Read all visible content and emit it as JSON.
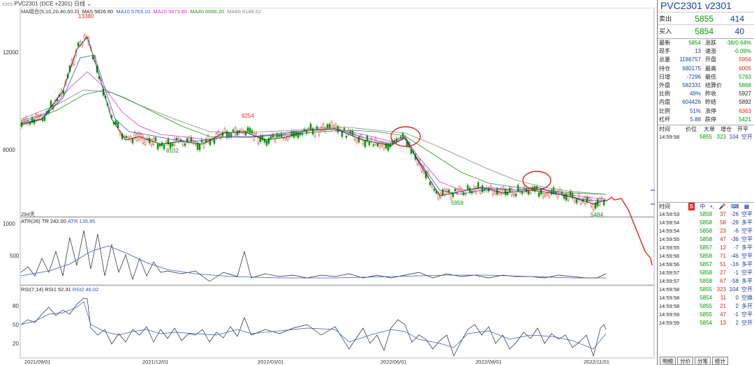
{
  "header": {
    "symbol_line": "PVC2301",
    "exchange": "(DCE +2301)",
    "period": "日线"
  },
  "ma_legend": {
    "group": "MA组合(5,10,20,40,60,0)",
    "ma5": "MA5 5826.60",
    "ma10": "MA10 5763.10",
    "ma20": "MA20 5873.80",
    "ma40": "MA40 6066.20",
    "ma60": "MA60 6148.62"
  },
  "price_axis": {
    "t1": "12000",
    "t2": "8000"
  },
  "price_labels": {
    "high": "13380",
    "mid": "9254",
    "low1": "8102",
    "low2": "5959",
    "low3": "5484",
    "days": "294天"
  },
  "atr": {
    "legend": "ATR(26)",
    "tr": "TR 242.00",
    "atr": "ATR 135.85",
    "t1": "1000",
    "t2": "500"
  },
  "rsi": {
    "legend": "RSI(7,14)",
    "r1": "RSI1 52.31",
    "r2": "RSI2 46.02",
    "t1": "80",
    "t2": "50",
    "t3": "20"
  },
  "xaxis": [
    "2021/09/01",
    "2021/12/01",
    "2022/03/01",
    "2022/06/01",
    "2022/08/01",
    "2022/11/01"
  ],
  "quote": {
    "title": "PVC2301  v2301",
    "sell": {
      "label": "卖出",
      "price": "5855",
      "vol": "414"
    },
    "buy": {
      "label": "买入",
      "price": "5854",
      "vol": "40"
    },
    "rows": [
      [
        "最新",
        "5854",
        "涨跌",
        "-38/0.64%"
      ],
      [
        "现手",
        "13",
        "速涨",
        "-0.09%"
      ],
      [
        "总量",
        "1186757",
        "开盘",
        "5956"
      ],
      [
        "持仓",
        "680175",
        "最高",
        "6005"
      ],
      [
        "日增",
        "-7296",
        "最低",
        "5763"
      ],
      [
        "外盘",
        "582331",
        "结算价",
        "5868"
      ],
      [
        "比例",
        "49%",
        "昨收",
        "5927"
      ],
      [
        "内盘",
        "604426",
        "昨结",
        "5892"
      ],
      [
        "比例",
        "51%",
        "涨停",
        "6363"
      ],
      [
        "杠杆",
        "5.88",
        "跌停",
        "5421"
      ]
    ],
    "trade_header": [
      "时间",
      "价位",
      "大单",
      "增仓",
      "开平"
    ],
    "last_trade": [
      "14:59:58",
      "5855",
      "323",
      "104",
      "空开"
    ],
    "tick_header": "时间",
    "ticks": [
      [
        "14:59:53",
        "5859",
        "37",
        "-26",
        "空平"
      ],
      [
        "14:59:54",
        "5858",
        "58",
        "-29",
        "多平"
      ],
      [
        "14:59:54",
        "5858",
        "23",
        "-6",
        "空平"
      ],
      [
        "14:59:55",
        "5858",
        "47",
        "-36",
        "空平"
      ],
      [
        "14:59:55",
        "5857",
        "12",
        "-7",
        "多平"
      ],
      [
        "14:59:56",
        "5858",
        "71",
        "-46",
        "空平"
      ],
      [
        "14:59:56",
        "5857",
        "51",
        "-16",
        "多平"
      ],
      [
        "14:59:57",
        "5858",
        "27",
        "-1",
        "空平"
      ],
      [
        "14:59:57",
        "5858",
        "67",
        "-58",
        "多平"
      ],
      [
        "14:59:58",
        "5855",
        "323",
        "104",
        "空开"
      ],
      [
        "14:59:58",
        "5854",
        "11",
        "0",
        "空换"
      ],
      [
        "14:59:58",
        "5855",
        "21",
        "2",
        "多开"
      ],
      [
        "14:59:59",
        "5855",
        "47",
        "-1",
        "空平"
      ],
      [
        "14:59:59",
        "5854",
        "13",
        "2",
        "空开"
      ]
    ],
    "tabs": [
      "明细",
      "分价",
      "分笔",
      "统计"
    ]
  },
  "colors": {
    "up": "#e0261c",
    "down": "#009900",
    "ma5": "#222222",
    "ma10": "#3355cc",
    "ma20": "#dd33cc",
    "ma40": "#229922",
    "ma60": "#888888"
  }
}
